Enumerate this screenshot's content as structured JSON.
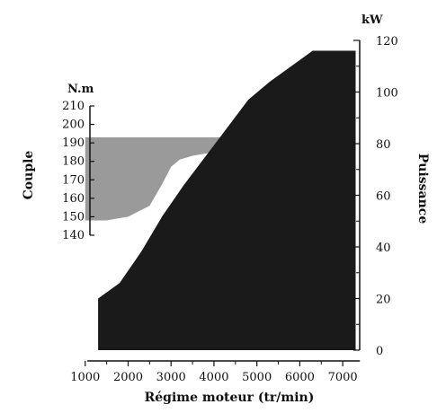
{
  "chart_data": {
    "type": "area",
    "xlabel": "Régime moteur (tr/min)",
    "x_ticks": [
      1000,
      2000,
      3000,
      4000,
      5000,
      6000,
      7000
    ],
    "xlim": [
      900,
      7500
    ],
    "y_left": {
      "label": "Couple",
      "unit": "N.m",
      "ticks": [
        140,
        150,
        160,
        170,
        180,
        190,
        200,
        210
      ],
      "ylim": [
        140,
        210
      ]
    },
    "y_right": {
      "label": "Puissance",
      "unit": "kW",
      "ticks": [
        0,
        20,
        40,
        60,
        80,
        100,
        120
      ],
      "ylim": [
        0,
        120
      ]
    },
    "series": [
      {
        "axis": "left",
        "color": "#9a9a9a",
        "x": [
          1000,
          1500,
          2000,
          2500,
          2800,
          3000,
          3200,
          3500,
          4000,
          4300
        ],
        "upper": [
          193,
          193,
          193,
          193,
          193,
          193,
          193,
          193,
          193,
          193
        ],
        "lower": [
          148,
          148,
          150,
          156,
          168,
          177,
          181,
          183,
          185,
          193
        ]
      },
      {
        "axis": "right",
        "color": "#1a1a1a",
        "x": [
          1300,
          1800,
          2300,
          2800,
          3300,
          3800,
          4300,
          4800,
          5300,
          5800,
          6300,
          6600,
          7300
        ],
        "values": [
          20,
          26,
          38,
          52,
          64,
          75,
          86,
          97,
          104,
          110,
          116,
          116,
          116
        ]
      }
    ]
  }
}
